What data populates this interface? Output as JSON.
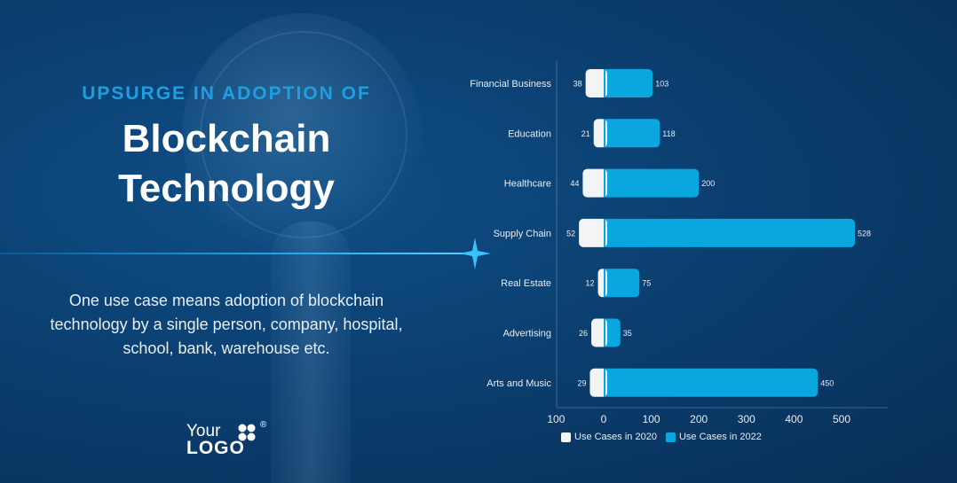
{
  "heading": {
    "pre": "UPSURGE IN ADOPTION OF",
    "line1": "Blockchain",
    "line2": "Technology"
  },
  "description": "One use case means adoption of blockchain technology by a single person, company, hospital, school, bank, warehouse etc.",
  "logo": {
    "your": "Your",
    "logo": "LOGO",
    "reg": "®"
  },
  "colors": {
    "series_2020": "#f2f4f6",
    "series_2022": "#0aa6df",
    "axis_text": "#e8eef5"
  },
  "chart_data": {
    "type": "bar",
    "orientation": "horizontal",
    "categories": [
      "Financial Business",
      "Education",
      "Healthcare",
      "Supply Chain",
      "Real Estate",
      "Advertising",
      "Arts and Music"
    ],
    "series": [
      {
        "name": "Use Cases in 2020",
        "values": [
          38,
          21,
          44,
          52,
          12,
          26,
          29
        ],
        "direction": "negative"
      },
      {
        "name": "Use Cases in 2022",
        "values": [
          103,
          118,
          200,
          528,
          75,
          35,
          450
        ],
        "direction": "positive"
      }
    ],
    "xticks": [
      "100",
      "0",
      "100",
      "200",
      "300",
      "400",
      "500"
    ],
    "xlim": [
      -100,
      600
    ],
    "title": "",
    "xlabel": "",
    "ylabel": "",
    "grid": false,
    "legend": "bottom"
  }
}
